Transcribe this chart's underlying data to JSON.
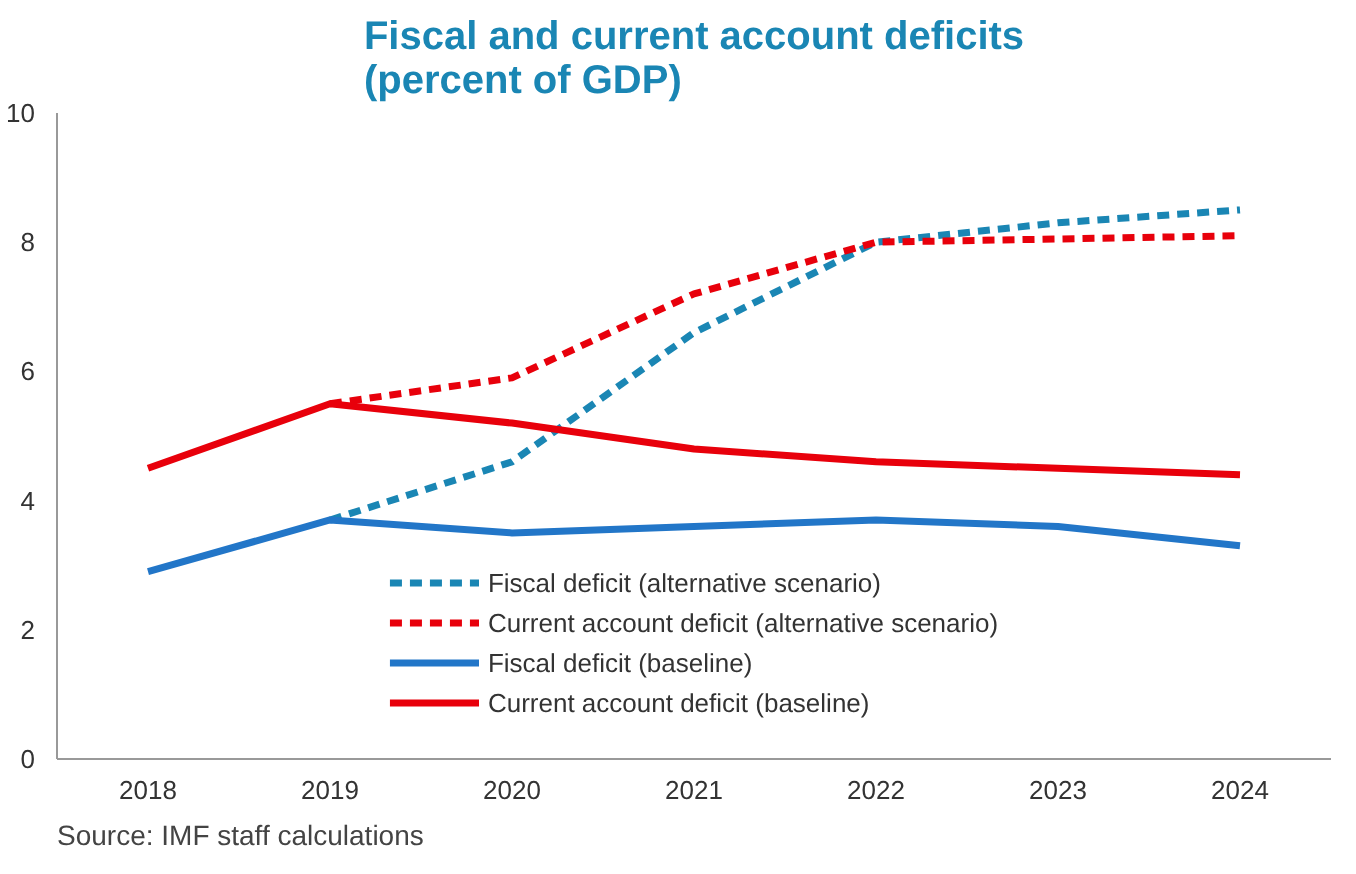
{
  "chart_data": {
    "type": "line",
    "title": "Fiscal and current account deficits\n(percent of GDP)",
    "categories": [
      "2018",
      "2019",
      "2020",
      "2021",
      "2022",
      "2023",
      "2024"
    ],
    "series": [
      {
        "name": "Fiscal deficit (alternative scenario)",
        "color": "#1a86b4",
        "line_style": "dashed",
        "values": [
          null,
          3.7,
          4.6,
          6.6,
          8.0,
          8.3,
          8.5
        ]
      },
      {
        "name": "Current account deficit (alternative scenario)",
        "color": "#e8000b",
        "line_style": "dashed",
        "values": [
          null,
          5.5,
          5.9,
          7.2,
          8.0,
          8.05,
          8.1
        ]
      },
      {
        "name": "Fiscal deficit (baseline)",
        "color": "#2276c8",
        "line_style": "solid",
        "values": [
          2.9,
          3.7,
          3.5,
          3.6,
          3.7,
          3.6,
          3.3
        ]
      },
      {
        "name": "Current account deficit (baseline)",
        "color": "#e8000b",
        "line_style": "solid",
        "values": [
          4.5,
          5.5,
          5.2,
          4.8,
          4.6,
          4.5,
          4.4
        ]
      }
    ],
    "ylim": [
      0,
      10
    ],
    "yticks": [
      0,
      2,
      4,
      6,
      8,
      10
    ],
    "grid": false,
    "legend": "bottom",
    "annotations": [
      "Source: IMF staff calculations"
    ]
  }
}
